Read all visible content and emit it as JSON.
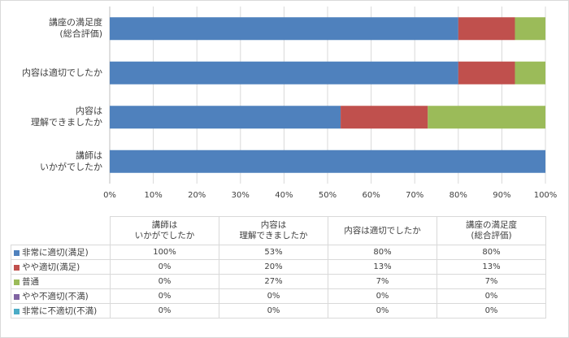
{
  "chart_data": {
    "type": "bar",
    "orientation": "horizontal",
    "stacked": true,
    "categories": [
      "講師は\nいかがでしたか",
      "内容は\n理解できましたか",
      "内容は適切でしたか",
      "講座の満足度\n(総合評価)"
    ],
    "series": [
      {
        "name": "非常に適切(満足)",
        "color": "#4f81bd",
        "values": [
          100,
          53,
          80,
          80
        ]
      },
      {
        "name": "やや適切(満足)",
        "color": "#c0504d",
        "values": [
          0,
          20,
          13,
          13
        ]
      },
      {
        "name": "普通",
        "color": "#9bbb59",
        "values": [
          0,
          27,
          7,
          7
        ]
      },
      {
        "name": "やや不適切(不満)",
        "color": "#8064a2",
        "values": [
          0,
          0,
          0,
          0
        ]
      },
      {
        "name": "非常に不適切(不満)",
        "color": "#4bacc6",
        "values": [
          0,
          0,
          0,
          0
        ]
      }
    ],
    "xlim": [
      0,
      100
    ],
    "x_ticks": [
      "0%",
      "10%",
      "20%",
      "30%",
      "40%",
      "50%",
      "60%",
      "70%",
      "80%",
      "90%",
      "100%"
    ],
    "grid": true,
    "legend": "data table below chart",
    "value_suffix": "%"
  },
  "colors": {
    "gridline": "#d9d9d9",
    "axis": "#bfbfbf",
    "text": "#404040"
  }
}
